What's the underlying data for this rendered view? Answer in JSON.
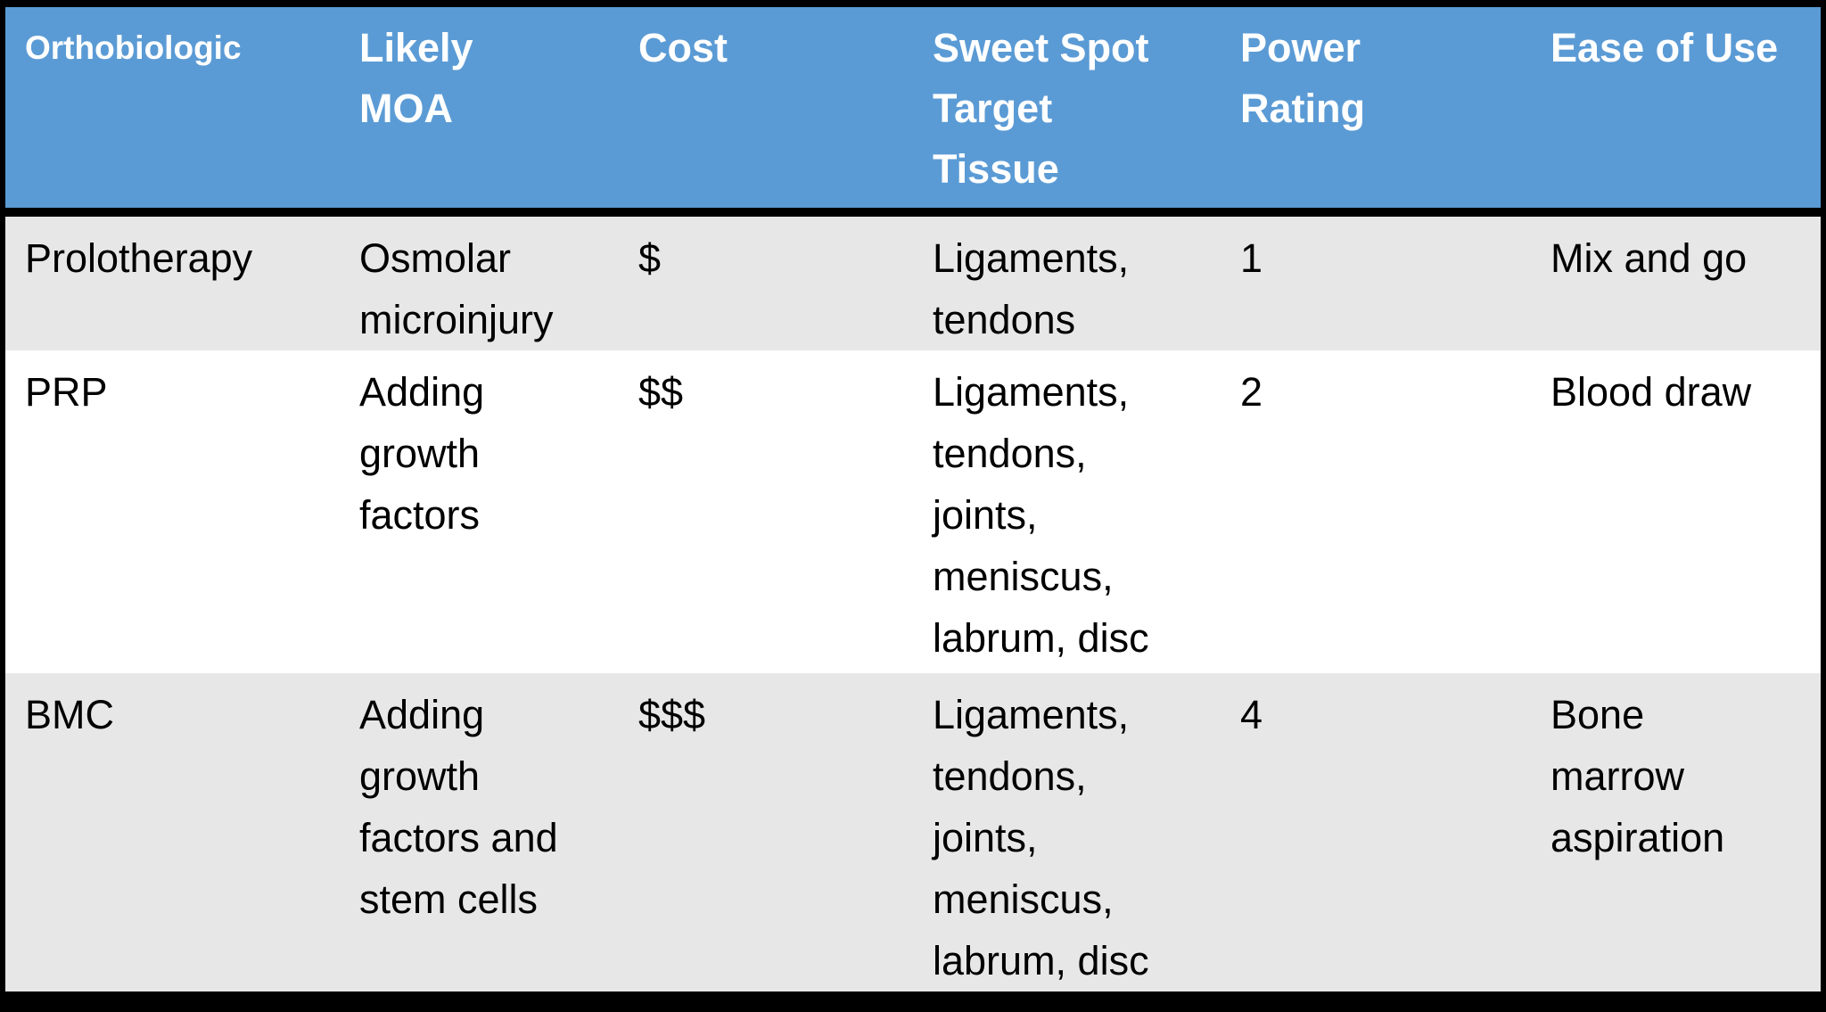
{
  "colors": {
    "header_bg": "#5B9BD5",
    "header_text": "#FFFFFF",
    "row_alt_bg": "#E8E7E7",
    "row_bg": "#FFFFFF",
    "border": "#000000",
    "body_text": "#000000"
  },
  "table": {
    "headers": [
      "Orthobiologic",
      "Likely\nMOA",
      "Cost",
      "Sweet Spot\nTarget\nTissue",
      "Power\nRating",
      "Ease of Use"
    ],
    "rows": [
      [
        "Prolotherapy",
        "Osmolar\nmicroinjury",
        "$",
        "Ligaments,\ntendons",
        "1",
        "Mix and go"
      ],
      [
        "PRP",
        "Adding\ngrowth\nfactors",
        "$$",
        "Ligaments,\ntendons,\njoints,\nmeniscus,\nlabrum, disc",
        "2",
        "Blood draw"
      ],
      [
        "BMC",
        "Adding\ngrowth\nfactors and\nstem cells",
        "$$$",
        "Ligaments,\ntendons,\njoints,\nmeniscus,\nlabrum, disc",
        "4",
        "Bone\nmarrow\naspiration"
      ]
    ]
  }
}
